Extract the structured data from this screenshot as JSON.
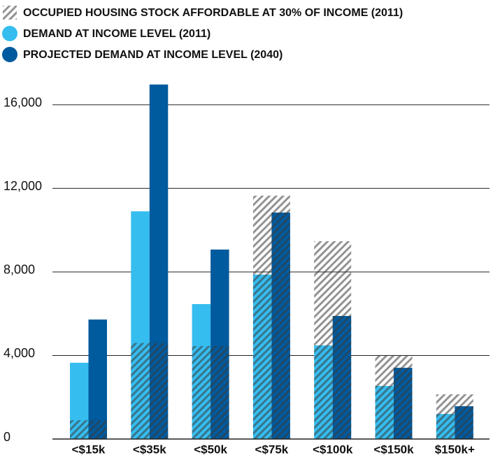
{
  "chart_data": {
    "type": "bar",
    "categories": [
      "<$15k",
      "<$35k",
      "<$50k",
      "<$75k",
      "<$100k",
      "<$150k",
      "$150k+"
    ],
    "series": [
      {
        "name": "OCCUPIED HOUSING STOCK AFFORDABLE AT 30% OF INCOME (2011)",
        "color": "#8c8c8c",
        "values": [
          900,
          4600,
          4450,
          11650,
          9470,
          4020,
          2140
        ]
      },
      {
        "name": "DEMAND AT INCOME LEVEL (2011)",
        "color": "#35bdf0",
        "values": [
          3650,
          10900,
          6460,
          7870,
          4480,
          2540,
          1200
        ]
      },
      {
        "name": "PROJECTED DEMAND AT INCOME LEVEL (2040)",
        "color": "#005a9e",
        "values": [
          5720,
          16970,
          9070,
          10840,
          5890,
          3410,
          1570
        ]
      }
    ],
    "ylim": [
      0,
      17000
    ],
    "yticks": [
      0,
      {
        "value": 4000,
        "label": "4,000"
      },
      {
        "value": 8000,
        "label": "8,000"
      },
      {
        "value": 12000,
        "label": "12,000"
      },
      {
        "value": 16000,
        "label": "16,000"
      }
    ],
    "grid": true
  }
}
